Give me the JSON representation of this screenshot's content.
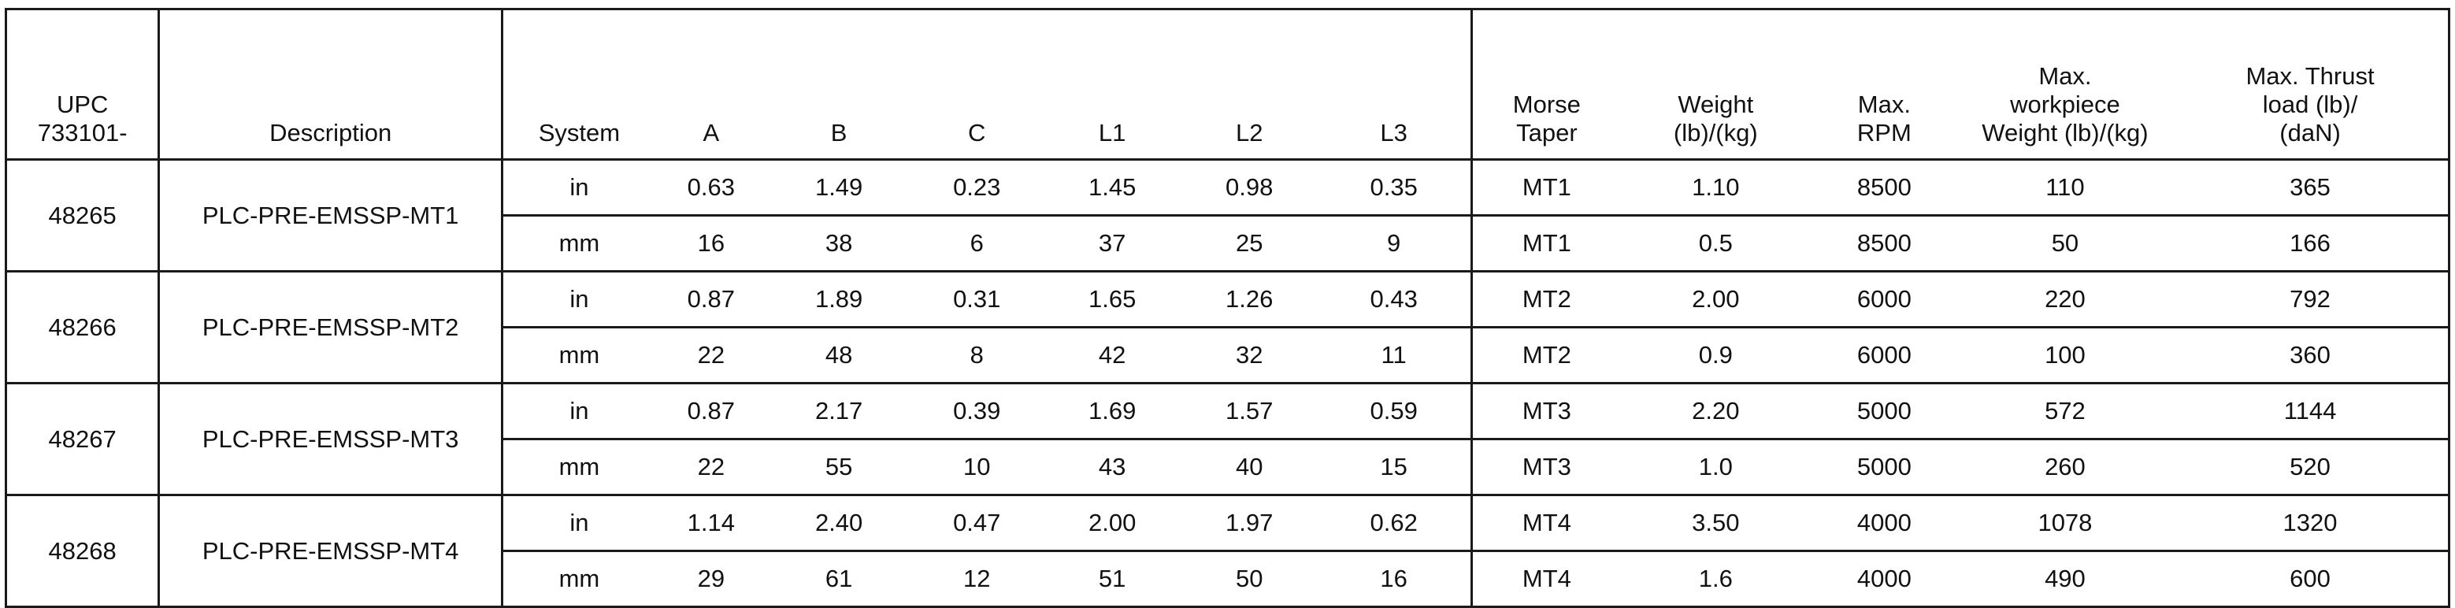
{
  "headers": {
    "upc": [
      "UPC",
      "733101-"
    ],
    "description": "Description",
    "system": "System",
    "a": "A",
    "b": "B",
    "c": "C",
    "l1": "L1",
    "l2": "L2",
    "l3": "L3",
    "morse_taper": [
      "Morse",
      "Taper"
    ],
    "weight": [
      "Weight",
      "(lb)/(kg)"
    ],
    "max_rpm": [
      "Max.",
      "RPM"
    ],
    "max_workpiece_weight": [
      "Max.",
      "workpiece",
      "Weight (lb)/(kg)"
    ],
    "max_thrust_load": [
      "Max. Thrust",
      "load (lb)/",
      "(daN)"
    ]
  },
  "products": [
    {
      "upc": "48265",
      "description": "PLC-PRE-EMSSP-MT1",
      "rows": [
        {
          "system": "in",
          "a": "0.63",
          "b": "1.49",
          "c": "0.23",
          "l1": "1.45",
          "l2": "0.98",
          "l3": "0.35",
          "morse": "MT1",
          "weight": "1.10",
          "rpm": "8500",
          "workpiece": "110",
          "thrust": "365"
        },
        {
          "system": "mm",
          "a": "16",
          "b": "38",
          "c": "6",
          "l1": "37",
          "l2": "25",
          "l3": "9",
          "morse": "MT1",
          "weight": "0.5",
          "rpm": "8500",
          "workpiece": "50",
          "thrust": "166"
        }
      ]
    },
    {
      "upc": "48266",
      "description": "PLC-PRE-EMSSP-MT2",
      "rows": [
        {
          "system": "in",
          "a": "0.87",
          "b": "1.89",
          "c": "0.31",
          "l1": "1.65",
          "l2": "1.26",
          "l3": "0.43",
          "morse": "MT2",
          "weight": "2.00",
          "rpm": "6000",
          "workpiece": "220",
          "thrust": "792"
        },
        {
          "system": "mm",
          "a": "22",
          "b": "48",
          "c": "8",
          "l1": "42",
          "l2": "32",
          "l3": "11",
          "morse": "MT2",
          "weight": "0.9",
          "rpm": "6000",
          "workpiece": "100",
          "thrust": "360"
        }
      ]
    },
    {
      "upc": "48267",
      "description": "PLC-PRE-EMSSP-MT3",
      "rows": [
        {
          "system": "in",
          "a": "0.87",
          "b": "2.17",
          "c": "0.39",
          "l1": "1.69",
          "l2": "1.57",
          "l3": "0.59",
          "morse": "MT3",
          "weight": "2.20",
          "rpm": "5000",
          "workpiece": "572",
          "thrust": "1144"
        },
        {
          "system": "mm",
          "a": "22",
          "b": "55",
          "c": "10",
          "l1": "43",
          "l2": "40",
          "l3": "15",
          "morse": "MT3",
          "weight": "1.0",
          "rpm": "5000",
          "workpiece": "260",
          "thrust": "520"
        }
      ]
    },
    {
      "upc": "48268",
      "description": "PLC-PRE-EMSSP-MT4",
      "rows": [
        {
          "system": "in",
          "a": "1.14",
          "b": "2.40",
          "c": "0.47",
          "l1": "2.00",
          "l2": "1.97",
          "l3": "0.62",
          "morse": "MT4",
          "weight": "3.50",
          "rpm": "4000",
          "workpiece": "1078",
          "thrust": "1320"
        },
        {
          "system": "mm",
          "a": "29",
          "b": "61",
          "c": "12",
          "l1": "51",
          "l2": "50",
          "l3": "16",
          "morse": "MT4",
          "weight": "1.6",
          "rpm": "4000",
          "workpiece": "490",
          "thrust": "600"
        }
      ]
    }
  ]
}
